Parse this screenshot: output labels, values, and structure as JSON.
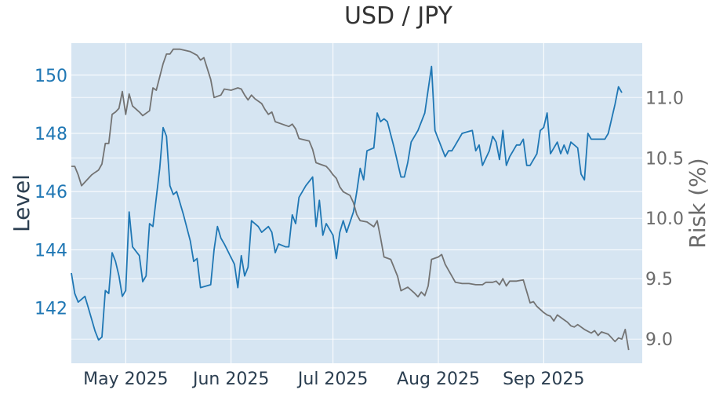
{
  "chart_data": {
    "type": "line",
    "title": "USD / JPY",
    "ylabel": "Level",
    "y2label": "Risk (%)",
    "colors": {
      "plot_bg": "#d6e5f2",
      "grid": "#ffffff",
      "level": "#1f77b4",
      "risk": "#737373"
    },
    "ylim": [
      140.1,
      151.1
    ],
    "y2lim": [
      8.8,
      11.45
    ],
    "y_ticks": [
      "142",
      "144",
      "146",
      "148",
      "150"
    ],
    "y2_ticks": [
      "9.0",
      "9.5",
      "10.0",
      "10.5",
      "11.0"
    ],
    "x_start": "2025-04-15",
    "x_end": "2025-09-30",
    "x_ticks": [
      {
        "date": "2025-05-01",
        "label": "May 2025"
      },
      {
        "date": "2025-06-01",
        "label": "Jun 2025"
      },
      {
        "date": "2025-07-01",
        "label": "Jul 2025"
      },
      {
        "date": "2025-08-01",
        "label": "Aug 2025"
      },
      {
        "date": "2025-09-01",
        "label": "Sep 2025"
      }
    ],
    "series": [
      {
        "key": "level",
        "axis": "left",
        "points": [
          [
            "2025-04-15",
            143.2
          ],
          [
            "2025-04-16",
            142.5
          ],
          [
            "2025-04-17",
            142.2
          ],
          [
            "2025-04-18",
            142.3
          ],
          [
            "2025-04-19",
            142.4
          ],
          [
            "2025-04-20",
            142.0
          ],
          [
            "2025-04-21",
            141.6
          ],
          [
            "2025-04-22",
            141.2
          ],
          [
            "2025-04-23",
            140.9
          ],
          [
            "2025-04-24",
            141.0
          ],
          [
            "2025-04-25",
            142.6
          ],
          [
            "2025-04-26",
            142.5
          ],
          [
            "2025-04-27",
            143.9
          ],
          [
            "2025-04-28",
            143.6
          ],
          [
            "2025-04-29",
            143.1
          ],
          [
            "2025-04-30",
            142.4
          ],
          [
            "2025-05-01",
            142.6
          ],
          [
            "2025-05-02",
            145.3
          ],
          [
            "2025-05-03",
            144.1
          ],
          [
            "2025-05-05",
            143.8
          ],
          [
            "2025-05-06",
            142.9
          ],
          [
            "2025-05-07",
            143.1
          ],
          [
            "2025-05-08",
            144.9
          ],
          [
            "2025-05-09",
            144.8
          ],
          [
            "2025-05-11",
            146.8
          ],
          [
            "2025-05-12",
            148.2
          ],
          [
            "2025-05-13",
            147.9
          ],
          [
            "2025-05-14",
            146.2
          ],
          [
            "2025-05-15",
            145.9
          ],
          [
            "2025-05-16",
            146.0
          ],
          [
            "2025-05-18",
            145.2
          ],
          [
            "2025-05-20",
            144.3
          ],
          [
            "2025-05-21",
            143.6
          ],
          [
            "2025-05-22",
            143.7
          ],
          [
            "2025-05-23",
            142.7
          ],
          [
            "2025-05-26",
            142.8
          ],
          [
            "2025-05-27",
            144.0
          ],
          [
            "2025-05-28",
            144.8
          ],
          [
            "2025-05-29",
            144.4
          ],
          [
            "2025-05-30",
            144.2
          ],
          [
            "2025-06-02",
            143.5
          ],
          [
            "2025-06-03",
            142.7
          ],
          [
            "2025-06-04",
            143.8
          ],
          [
            "2025-06-05",
            143.1
          ],
          [
            "2025-06-06",
            143.4
          ],
          [
            "2025-06-07",
            145.0
          ],
          [
            "2025-06-09",
            144.8
          ],
          [
            "2025-06-10",
            144.6
          ],
          [
            "2025-06-12",
            144.8
          ],
          [
            "2025-06-13",
            144.6
          ],
          [
            "2025-06-14",
            143.9
          ],
          [
            "2025-06-15",
            144.2
          ],
          [
            "2025-06-17",
            144.1
          ],
          [
            "2025-06-18",
            144.1
          ],
          [
            "2025-06-19",
            145.2
          ],
          [
            "2025-06-20",
            144.9
          ],
          [
            "2025-06-21",
            145.8
          ],
          [
            "2025-06-23",
            146.2
          ],
          [
            "2025-06-25",
            146.5
          ],
          [
            "2025-06-26",
            144.8
          ],
          [
            "2025-06-27",
            145.7
          ],
          [
            "2025-06-28",
            144.5
          ],
          [
            "2025-06-29",
            144.9
          ],
          [
            "2025-07-01",
            144.5
          ],
          [
            "2025-07-02",
            143.7
          ],
          [
            "2025-07-03",
            144.6
          ],
          [
            "2025-07-04",
            145.0
          ],
          [
            "2025-07-05",
            144.6
          ],
          [
            "2025-07-07",
            145.3
          ],
          [
            "2025-07-08",
            146.0
          ],
          [
            "2025-07-09",
            146.8
          ],
          [
            "2025-07-10",
            146.4
          ],
          [
            "2025-07-11",
            147.4
          ],
          [
            "2025-07-13",
            147.5
          ],
          [
            "2025-07-14",
            148.7
          ],
          [
            "2025-07-15",
            148.4
          ],
          [
            "2025-07-16",
            148.5
          ],
          [
            "2025-07-17",
            148.4
          ],
          [
            "2025-07-19",
            147.5
          ],
          [
            "2025-07-21",
            146.5
          ],
          [
            "2025-07-22",
            146.5
          ],
          [
            "2025-07-23",
            147.0
          ],
          [
            "2025-07-24",
            147.7
          ],
          [
            "2025-07-26",
            148.1
          ],
          [
            "2025-07-28",
            148.7
          ],
          [
            "2025-07-30",
            150.3
          ],
          [
            "2025-07-31",
            148.1
          ],
          [
            "2025-08-01",
            147.8
          ],
          [
            "2025-08-03",
            147.2
          ],
          [
            "2025-08-04",
            147.4
          ],
          [
            "2025-08-05",
            147.4
          ],
          [
            "2025-08-06",
            147.6
          ],
          [
            "2025-08-08",
            148.0
          ],
          [
            "2025-08-11",
            148.1
          ],
          [
            "2025-08-12",
            147.4
          ],
          [
            "2025-08-13",
            147.6
          ],
          [
            "2025-08-14",
            146.9
          ],
          [
            "2025-08-16",
            147.4
          ],
          [
            "2025-08-17",
            147.9
          ],
          [
            "2025-08-18",
            147.7
          ],
          [
            "2025-08-19",
            147.1
          ],
          [
            "2025-08-20",
            148.1
          ],
          [
            "2025-08-21",
            146.9
          ],
          [
            "2025-08-22",
            147.2
          ],
          [
            "2025-08-24",
            147.6
          ],
          [
            "2025-08-25",
            147.6
          ],
          [
            "2025-08-26",
            147.8
          ],
          [
            "2025-08-27",
            146.9
          ],
          [
            "2025-08-28",
            146.9
          ],
          [
            "2025-08-30",
            147.3
          ],
          [
            "2025-08-31",
            148.1
          ],
          [
            "2025-09-01",
            148.2
          ],
          [
            "2025-09-02",
            148.7
          ],
          [
            "2025-09-03",
            147.3
          ],
          [
            "2025-09-05",
            147.7
          ],
          [
            "2025-09-06",
            147.3
          ],
          [
            "2025-09-07",
            147.6
          ],
          [
            "2025-09-08",
            147.3
          ],
          [
            "2025-09-09",
            147.7
          ],
          [
            "2025-09-11",
            147.5
          ],
          [
            "2025-09-12",
            146.6
          ],
          [
            "2025-09-13",
            146.4
          ],
          [
            "2025-09-14",
            148.0
          ],
          [
            "2025-09-15",
            147.8
          ],
          [
            "2025-09-17",
            147.8
          ],
          [
            "2025-09-19",
            147.8
          ],
          [
            "2025-09-20",
            148.0
          ],
          [
            "2025-09-22",
            149.0
          ],
          [
            "2025-09-23",
            149.6
          ],
          [
            "2025-09-24",
            149.4
          ]
        ]
      },
      {
        "key": "risk",
        "axis": "right",
        "points": [
          [
            "2025-04-15",
            10.43
          ],
          [
            "2025-04-16",
            10.43
          ],
          [
            "2025-04-17",
            10.36
          ],
          [
            "2025-04-18",
            10.27
          ],
          [
            "2025-04-19",
            10.3
          ],
          [
            "2025-04-20",
            10.33
          ],
          [
            "2025-04-21",
            10.36
          ],
          [
            "2025-04-22",
            10.38
          ],
          [
            "2025-04-23",
            10.4
          ],
          [
            "2025-04-24",
            10.45
          ],
          [
            "2025-04-25",
            10.62
          ],
          [
            "2025-04-26",
            10.62
          ],
          [
            "2025-04-27",
            10.86
          ],
          [
            "2025-04-28",
            10.88
          ],
          [
            "2025-04-29",
            10.91
          ],
          [
            "2025-04-30",
            11.05
          ],
          [
            "2025-05-01",
            10.86
          ],
          [
            "2025-05-02",
            11.03
          ],
          [
            "2025-05-03",
            10.93
          ],
          [
            "2025-05-05",
            10.88
          ],
          [
            "2025-05-06",
            10.85
          ],
          [
            "2025-05-08",
            10.89
          ],
          [
            "2025-05-09",
            11.08
          ],
          [
            "2025-05-10",
            11.06
          ],
          [
            "2025-05-12",
            11.28
          ],
          [
            "2025-05-13",
            11.36
          ],
          [
            "2025-05-14",
            11.36
          ],
          [
            "2025-05-15",
            11.4
          ],
          [
            "2025-05-17",
            11.4
          ],
          [
            "2025-05-20",
            11.38
          ],
          [
            "2025-05-22",
            11.35
          ],
          [
            "2025-05-23",
            11.31
          ],
          [
            "2025-05-24",
            11.33
          ],
          [
            "2025-05-26",
            11.15
          ],
          [
            "2025-05-27",
            11.0
          ],
          [
            "2025-05-29",
            11.02
          ],
          [
            "2025-05-30",
            11.07
          ],
          [
            "2025-06-01",
            11.06
          ],
          [
            "2025-06-03",
            11.08
          ],
          [
            "2025-06-04",
            11.07
          ],
          [
            "2025-06-05",
            11.02
          ],
          [
            "2025-06-06",
            10.98
          ],
          [
            "2025-06-07",
            11.02
          ],
          [
            "2025-06-08",
            10.99
          ],
          [
            "2025-06-10",
            10.95
          ],
          [
            "2025-06-11",
            10.9
          ],
          [
            "2025-06-12",
            10.86
          ],
          [
            "2025-06-13",
            10.88
          ],
          [
            "2025-06-14",
            10.8
          ],
          [
            "2025-06-16",
            10.78
          ],
          [
            "2025-06-18",
            10.76
          ],
          [
            "2025-06-19",
            10.78
          ],
          [
            "2025-06-20",
            10.74
          ],
          [
            "2025-06-21",
            10.66
          ],
          [
            "2025-06-24",
            10.64
          ],
          [
            "2025-06-25",
            10.57
          ],
          [
            "2025-06-26",
            10.46
          ],
          [
            "2025-06-27",
            10.45
          ],
          [
            "2025-06-29",
            10.43
          ],
          [
            "2025-06-30",
            10.4
          ],
          [
            "2025-07-01",
            10.36
          ],
          [
            "2025-07-02",
            10.33
          ],
          [
            "2025-07-03",
            10.26
          ],
          [
            "2025-07-04",
            10.22
          ],
          [
            "2025-07-06",
            10.19
          ],
          [
            "2025-07-07",
            10.13
          ],
          [
            "2025-07-08",
            10.03
          ],
          [
            "2025-07-09",
            9.98
          ],
          [
            "2025-07-11",
            9.97
          ],
          [
            "2025-07-13",
            9.93
          ],
          [
            "2025-07-14",
            9.98
          ],
          [
            "2025-07-15",
            9.84
          ],
          [
            "2025-07-16",
            9.68
          ],
          [
            "2025-07-18",
            9.66
          ],
          [
            "2025-07-20",
            9.52
          ],
          [
            "2025-07-21",
            9.4
          ],
          [
            "2025-07-23",
            9.43
          ],
          [
            "2025-07-25",
            9.38
          ],
          [
            "2025-07-26",
            9.35
          ],
          [
            "2025-07-27",
            9.39
          ],
          [
            "2025-07-28",
            9.36
          ],
          [
            "2025-07-29",
            9.44
          ],
          [
            "2025-07-30",
            9.66
          ],
          [
            "2025-08-01",
            9.68
          ],
          [
            "2025-08-02",
            9.7
          ],
          [
            "2025-08-03",
            9.62
          ],
          [
            "2025-08-04",
            9.57
          ],
          [
            "2025-08-06",
            9.47
          ],
          [
            "2025-08-08",
            9.46
          ],
          [
            "2025-08-10",
            9.46
          ],
          [
            "2025-08-12",
            9.45
          ],
          [
            "2025-08-14",
            9.45
          ],
          [
            "2025-08-15",
            9.47
          ],
          [
            "2025-08-17",
            9.47
          ],
          [
            "2025-08-18",
            9.48
          ],
          [
            "2025-08-19",
            9.45
          ],
          [
            "2025-08-20",
            9.5
          ],
          [
            "2025-08-21",
            9.44
          ],
          [
            "2025-08-22",
            9.48
          ],
          [
            "2025-08-24",
            9.48
          ],
          [
            "2025-08-26",
            9.49
          ],
          [
            "2025-08-28",
            9.3
          ],
          [
            "2025-08-29",
            9.31
          ],
          [
            "2025-08-30",
            9.27
          ],
          [
            "2025-09-01",
            9.22
          ],
          [
            "2025-09-02",
            9.2
          ],
          [
            "2025-09-03",
            9.19
          ],
          [
            "2025-09-04",
            9.15
          ],
          [
            "2025-09-05",
            9.2
          ],
          [
            "2025-09-07",
            9.16
          ],
          [
            "2025-09-08",
            9.14
          ],
          [
            "2025-09-09",
            9.11
          ],
          [
            "2025-09-10",
            9.1
          ],
          [
            "2025-09-11",
            9.12
          ],
          [
            "2025-09-13",
            9.08
          ],
          [
            "2025-09-15",
            9.05
          ],
          [
            "2025-09-16",
            9.07
          ],
          [
            "2025-09-17",
            9.03
          ],
          [
            "2025-09-18",
            9.06
          ],
          [
            "2025-09-20",
            9.04
          ],
          [
            "2025-09-22",
            8.98
          ],
          [
            "2025-09-23",
            9.01
          ],
          [
            "2025-09-24",
            9.0
          ],
          [
            "2025-09-25",
            9.08
          ],
          [
            "2025-09-26",
            8.91
          ]
        ]
      }
    ]
  }
}
